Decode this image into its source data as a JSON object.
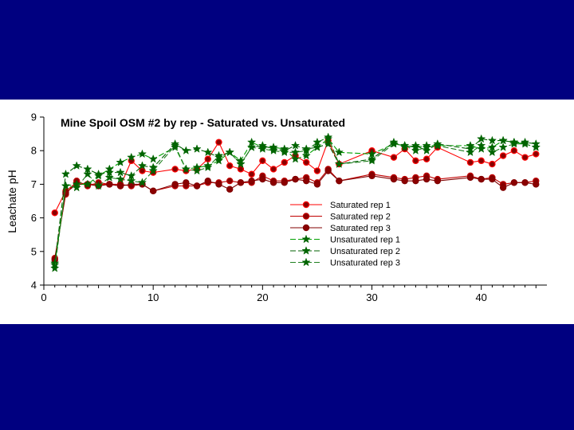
{
  "chart_data": {
    "type": "line",
    "title": "Mine Spoil OSM #2  by rep -  Saturated vs. Unsaturated",
    "xlabel": "",
    "ylabel": "Leachate pH",
    "xlim": [
      0,
      46
    ],
    "ylim": [
      4,
      9
    ],
    "xticks": [
      0,
      10,
      20,
      30,
      40
    ],
    "yticks": [
      4,
      5,
      6,
      7,
      8,
      9
    ],
    "grid": false,
    "legend_position": "center-right",
    "series": [
      {
        "name": "Saturated rep 1",
        "color": "#ff0000",
        "marker": "circle",
        "line": "solid",
        "x": [
          1,
          2,
          3,
          4,
          5,
          6,
          7,
          8,
          9,
          10,
          12,
          13,
          14,
          15,
          16,
          17,
          18,
          19,
          20,
          21,
          22,
          23,
          24,
          25,
          26,
          27,
          30,
          32,
          33,
          34,
          35,
          36,
          39,
          40,
          41,
          42,
          43,
          44,
          45
        ],
        "y": [
          6.15,
          6.8,
          7.05,
          7.0,
          7.0,
          7.0,
          6.95,
          7.7,
          7.4,
          7.35,
          7.45,
          7.4,
          7.45,
          7.75,
          8.25,
          7.55,
          7.45,
          7.3,
          7.7,
          7.45,
          7.65,
          7.85,
          7.65,
          7.4,
          8.3,
          7.6,
          8.0,
          7.8,
          8.05,
          7.7,
          7.75,
          8.1,
          7.65,
          7.7,
          7.6,
          7.85,
          8.0,
          7.8,
          7.9
        ]
      },
      {
        "name": "Saturated rep 2",
        "color": "#c00000",
        "marker": "circle",
        "line": "solid",
        "x": [
          1,
          2,
          3,
          4,
          5,
          6,
          7,
          8,
          9,
          10,
          12,
          13,
          14,
          15,
          16,
          17,
          18,
          19,
          20,
          21,
          22,
          23,
          24,
          25,
          26,
          27,
          30,
          32,
          33,
          34,
          35,
          36,
          39,
          40,
          41,
          42,
          43,
          44,
          45
        ],
        "y": [
          4.8,
          6.7,
          7.1,
          6.95,
          7.05,
          7.0,
          7.0,
          6.95,
          7.0,
          6.8,
          6.95,
          6.95,
          6.95,
          7.05,
          7.05,
          7.1,
          7.05,
          7.05,
          7.25,
          7.1,
          7.1,
          7.15,
          7.2,
          7.05,
          7.45,
          7.1,
          7.3,
          7.2,
          7.15,
          7.2,
          7.25,
          7.15,
          7.25,
          7.15,
          7.2,
          7.0,
          7.05,
          7.05,
          7.1
        ]
      },
      {
        "name": "Saturated rep 3",
        "color": "#800000",
        "marker": "circle",
        "line": "solid",
        "x": [
          1,
          2,
          3,
          4,
          5,
          6,
          7,
          8,
          9,
          10,
          12,
          13,
          14,
          15,
          16,
          17,
          18,
          19,
          20,
          21,
          22,
          23,
          24,
          25,
          26,
          27,
          30,
          32,
          33,
          34,
          35,
          36,
          39,
          40,
          41,
          42,
          43,
          44,
          45
        ],
        "y": [
          4.75,
          6.75,
          7.0,
          7.0,
          6.95,
          7.0,
          6.95,
          7.0,
          7.0,
          6.8,
          7.0,
          7.05,
          6.95,
          7.1,
          7.0,
          6.85,
          7.05,
          7.1,
          7.15,
          7.05,
          7.05,
          7.15,
          7.1,
          7.0,
          7.4,
          7.1,
          7.25,
          7.15,
          7.1,
          7.1,
          7.15,
          7.1,
          7.2,
          7.15,
          7.15,
          6.9,
          7.05,
          7.05,
          7.0
        ]
      },
      {
        "name": "Unsaturated rep 1",
        "color": "#00a000",
        "marker": "star",
        "line": "dashed",
        "x": [
          1,
          2,
          3,
          4,
          5,
          6,
          7,
          8,
          9,
          10,
          12,
          13,
          14,
          15,
          16,
          17,
          18,
          19,
          20,
          21,
          22,
          23,
          24,
          25,
          26,
          27,
          30,
          32,
          33,
          34,
          35,
          36,
          39,
          40,
          41,
          42,
          43,
          44,
          45
        ],
        "y": [
          4.6,
          6.95,
          7.0,
          7.0,
          7.25,
          7.45,
          7.65,
          7.8,
          7.9,
          7.75,
          8.1,
          7.45,
          7.5,
          7.55,
          7.7,
          7.95,
          7.7,
          8.25,
          8.1,
          8.1,
          8.05,
          7.75,
          7.85,
          8.1,
          8.35,
          7.95,
          7.9,
          8.2,
          8.15,
          8.1,
          8.15,
          8.15,
          8.15,
          8.05,
          8.1,
          8.3,
          8.25,
          8.2,
          8.1
        ]
      },
      {
        "name": "Unsaturated rep 2",
        "color": "#006000",
        "marker": "star",
        "line": "dashed",
        "x": [
          1,
          2,
          3,
          4,
          5,
          6,
          7,
          8,
          9,
          10,
          12,
          13,
          14,
          15,
          16,
          17,
          18,
          19,
          20,
          21,
          22,
          23,
          24,
          25,
          26,
          27,
          30,
          32,
          33,
          34,
          35,
          36,
          39,
          40,
          41,
          42,
          43,
          44,
          45
        ],
        "y": [
          4.65,
          7.3,
          7.55,
          7.45,
          7.3,
          7.35,
          7.35,
          7.25,
          7.55,
          7.5,
          8.2,
          8.0,
          8.05,
          7.95,
          7.8,
          7.95,
          7.6,
          8.1,
          8.15,
          8.05,
          8.0,
          8.15,
          8.05,
          8.1,
          8.2,
          7.6,
          7.75,
          8.25,
          8.1,
          8.15,
          8.0,
          8.2,
          8.05,
          8.35,
          8.3,
          8.3,
          8.25,
          8.25,
          8.2
        ]
      },
      {
        "name": "Unsaturated rep 3",
        "color": "#208020",
        "marker": "star",
        "line": "dashed",
        "x": [
          1,
          2,
          3,
          4,
          5,
          6,
          7,
          8,
          9,
          10,
          12,
          13,
          14,
          15,
          16,
          17,
          18,
          19,
          20,
          21,
          22,
          23,
          24,
          25,
          26,
          27,
          30,
          32,
          33,
          34,
          35,
          36,
          39,
          40,
          41,
          42,
          43,
          44,
          45
        ],
        "y": [
          4.5,
          6.95,
          6.9,
          7.3,
          6.95,
          7.2,
          7.15,
          7.1,
          7.05,
          7.4,
          8.15,
          7.45,
          7.4,
          7.5,
          7.85,
          7.95,
          7.6,
          8.1,
          8.05,
          8.0,
          7.95,
          7.95,
          8.0,
          8.25,
          8.4,
          7.6,
          7.7,
          8.2,
          8.15,
          8.0,
          8.1,
          8.15,
          7.95,
          8.15,
          7.95,
          8.1,
          8.2,
          8.2,
          8.1
        ]
      }
    ]
  }
}
